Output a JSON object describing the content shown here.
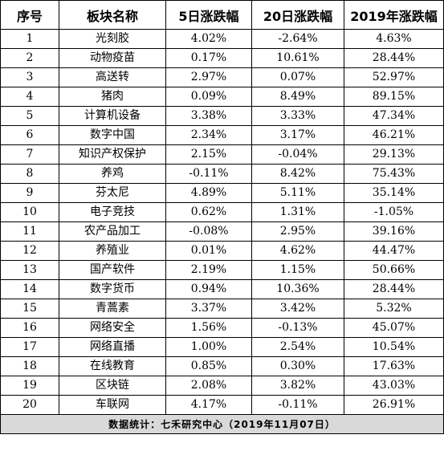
{
  "table": {
    "headers": [
      "序号",
      "板块名称",
      "5日涨跌幅",
      "20日涨跌幅",
      "2019年涨跌幅"
    ],
    "rows": [
      [
        "1",
        "光刻胶",
        "4.02%",
        "-2.64%",
        "4.63%"
      ],
      [
        "2",
        "动物疫苗",
        "0.17%",
        "10.61%",
        "28.44%"
      ],
      [
        "3",
        "高送转",
        "2.97%",
        "0.07%",
        "52.97%"
      ],
      [
        "4",
        "猪肉",
        "0.09%",
        "8.49%",
        "89.15%"
      ],
      [
        "5",
        "计算机设备",
        "3.38%",
        "3.33%",
        "47.34%"
      ],
      [
        "6",
        "数字中国",
        "2.34%",
        "3.17%",
        "46.21%"
      ],
      [
        "7",
        "知识产权保护",
        "2.15%",
        "-0.04%",
        "29.13%"
      ],
      [
        "8",
        "养鸡",
        "-0.11%",
        "8.42%",
        "75.43%"
      ],
      [
        "9",
        "芬太尼",
        "4.89%",
        "5.11%",
        "35.14%"
      ],
      [
        "10",
        "电子竞技",
        "0.62%",
        "1.31%",
        "-1.05%"
      ],
      [
        "11",
        "农产品加工",
        "-0.08%",
        "2.95%",
        "39.16%"
      ],
      [
        "12",
        "养殖业",
        "0.01%",
        "4.62%",
        "44.47%"
      ],
      [
        "13",
        "国产软件",
        "2.19%",
        "1.15%",
        "50.66%"
      ],
      [
        "14",
        "数字货币",
        "0.94%",
        "10.36%",
        "28.44%"
      ],
      [
        "15",
        "青蒿素",
        "3.37%",
        "3.42%",
        "5.32%"
      ],
      [
        "16",
        "网络安全",
        "1.56%",
        "-0.13%",
        "45.07%"
      ],
      [
        "17",
        "网络直播",
        "1.00%",
        "2.54%",
        "10.54%"
      ],
      [
        "18",
        "在线教育",
        "0.85%",
        "0.30%",
        "17.63%"
      ],
      [
        "19",
        "区块链",
        "2.08%",
        "3.82%",
        "43.03%"
      ],
      [
        "20",
        "车联网",
        "4.17%",
        "-0.11%",
        "26.91%"
      ]
    ],
    "footer": "数据统计：七禾研究中心（2019年11月07日）"
  },
  "colors": {
    "footer_bg": "#d9d9d9",
    "border": "#000000"
  }
}
